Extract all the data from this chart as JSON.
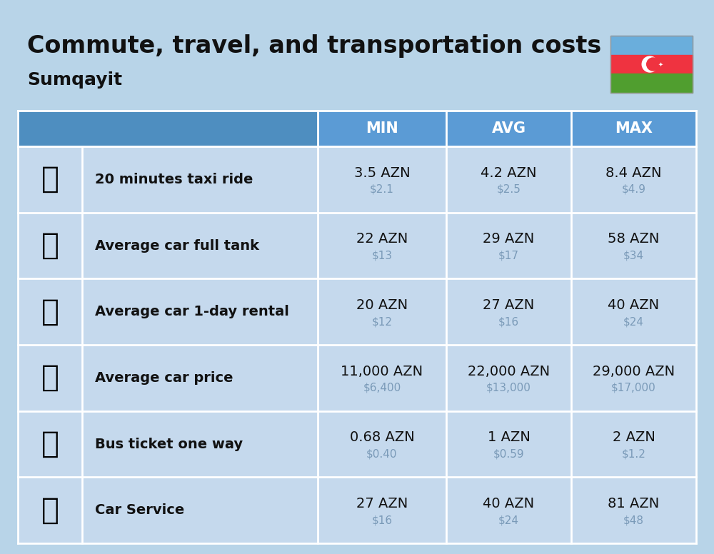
{
  "title": "Commute, travel, and transportation costs",
  "subtitle": "Sumqayit",
  "bg_color": "#b8d4e8",
  "header_bg": "#5b9bd5",
  "row_bg": "#c5d9ed",
  "white": "#ffffff",
  "col_headers": [
    "MIN",
    "AVG",
    "MAX"
  ],
  "rows": [
    {
      "label": "20 minutes taxi ride",
      "min_azn": "3.5 AZN",
      "min_usd": "$2.1",
      "avg_azn": "4.2 AZN",
      "avg_usd": "$2.5",
      "max_azn": "8.4 AZN",
      "max_usd": "$4.9"
    },
    {
      "label": "Average car full tank",
      "min_azn": "22 AZN",
      "min_usd": "$13",
      "avg_azn": "29 AZN",
      "avg_usd": "$17",
      "max_azn": "58 AZN",
      "max_usd": "$34"
    },
    {
      "label": "Average car 1-day rental",
      "min_azn": "20 AZN",
      "min_usd": "$12",
      "avg_azn": "27 AZN",
      "avg_usd": "$16",
      "max_azn": "40 AZN",
      "max_usd": "$24"
    },
    {
      "label": "Average car price",
      "min_azn": "11,000 AZN",
      "min_usd": "$6,400",
      "avg_azn": "22,000 AZN",
      "avg_usd": "$13,000",
      "max_azn": "29,000 AZN",
      "max_usd": "$17,000"
    },
    {
      "label": "Bus ticket one way",
      "min_azn": "0.68 AZN",
      "min_usd": "$0.40",
      "avg_azn": "1 AZN",
      "avg_usd": "$0.59",
      "max_azn": "2 AZN",
      "max_usd": "$1.2"
    },
    {
      "label": "Car Service",
      "min_azn": "27 AZN",
      "min_usd": "$16",
      "avg_azn": "40 AZN",
      "avg_usd": "$24",
      "max_azn": "81 AZN",
      "max_usd": "$48"
    }
  ],
  "title_fontsize": 24,
  "subtitle_fontsize": 18,
  "header_fontsize": 15,
  "label_fontsize": 14,
  "value_fontsize": 14,
  "usd_fontsize": 11,
  "usd_color": "#7a9ab8",
  "label_color": "#111111",
  "flag_blue": "#6aaedc",
  "flag_red": "#ef3340",
  "flag_green": "#509e2f"
}
